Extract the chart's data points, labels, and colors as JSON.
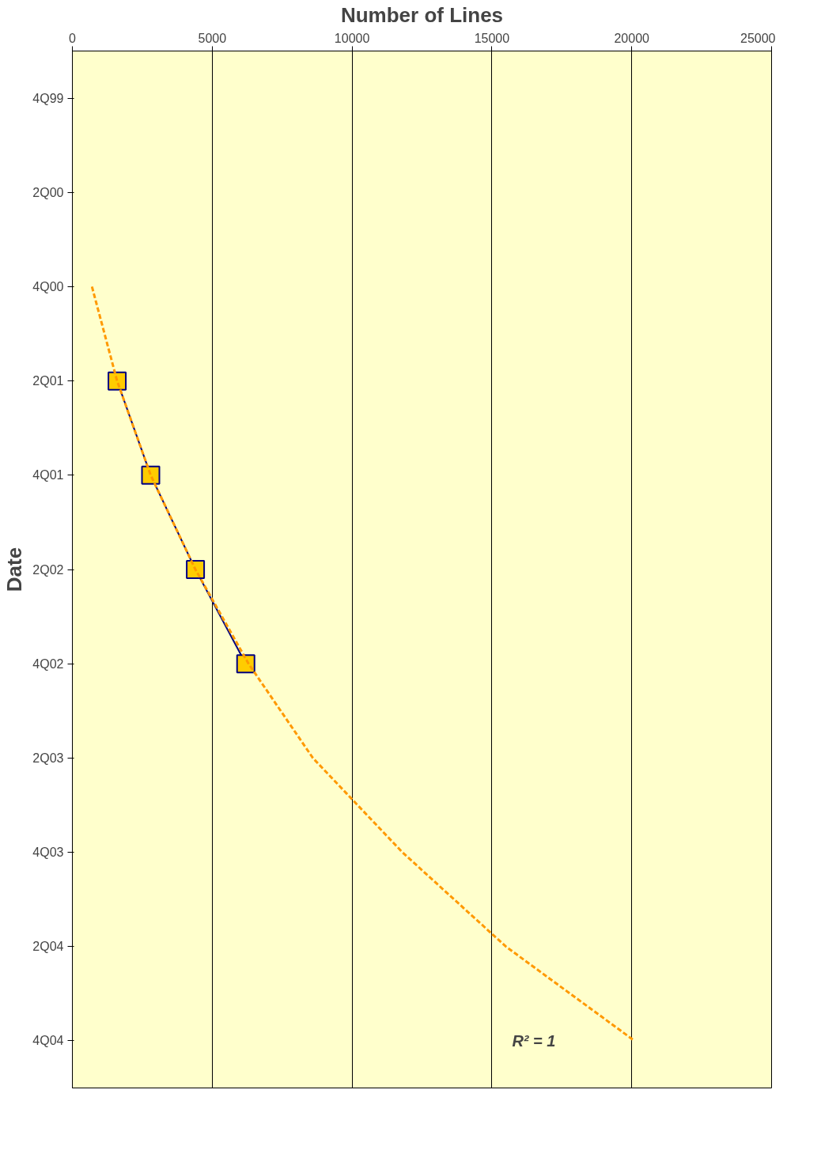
{
  "chart_data": {
    "type": "line",
    "orientation": "horizontal",
    "xlabel": "Number of Lines",
    "ylabel": "Date",
    "categories": [
      "4Q99",
      "2Q00",
      "4Q00",
      "2Q01",
      "4Q01",
      "2Q02",
      "4Q02",
      "2Q03",
      "4Q03",
      "2Q04",
      "4Q04"
    ],
    "series": [
      {
        "color": "#000080",
        "marker": "square",
        "line_style": "solid",
        "values": [
          null,
          null,
          null,
          1600,
          2800,
          4400,
          6200,
          null,
          null,
          null,
          null
        ]
      },
      {
        "color": "#ff9900",
        "marker": "none",
        "line_style": "dashed",
        "values": [
          null,
          null,
          700,
          1600,
          2800,
          4400,
          6300,
          8600,
          11800,
          15500,
          20100
        ]
      }
    ],
    "xlim": [
      0,
      25000
    ],
    "xticks": [
      0,
      5000,
      10000,
      15000,
      20000,
      25000
    ],
    "grid": "x",
    "annotations": [
      "R² = 1"
    ]
  }
}
